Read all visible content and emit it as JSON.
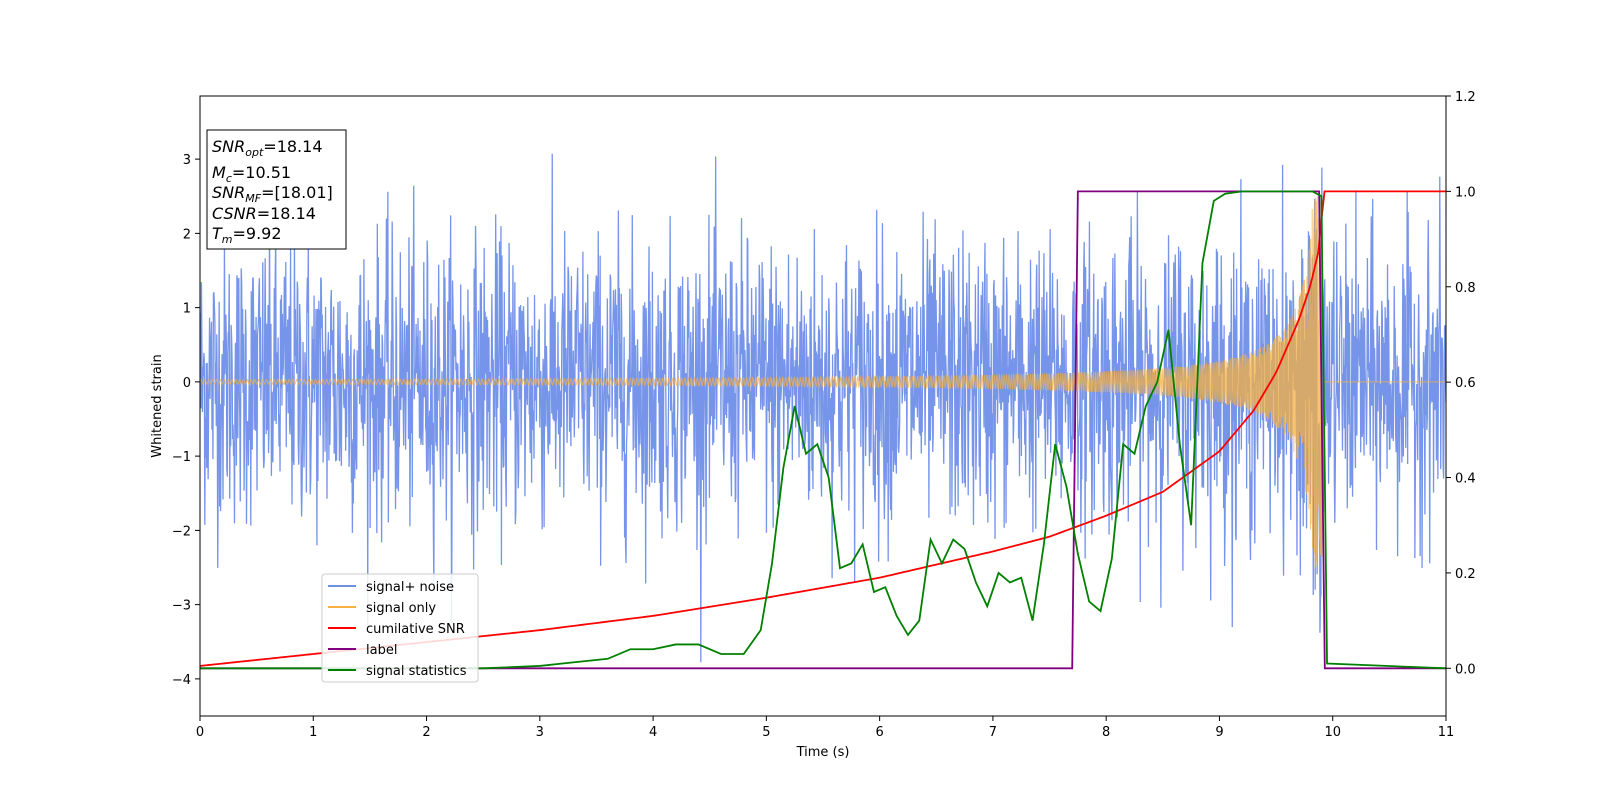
{
  "chart_data": {
    "type": "line",
    "xlabel": "Time (s)",
    "ylabel": "Whitened strain",
    "xlim": [
      0,
      11
    ],
    "ylim": [
      -4.5,
      3.85
    ],
    "y2lim": [
      -0.1,
      1.2
    ],
    "xticks": [
      0,
      1,
      2,
      3,
      4,
      5,
      6,
      7,
      8,
      9,
      10,
      11
    ],
    "yticks": [
      -4,
      -3,
      -2,
      -1,
      0,
      1,
      2,
      3
    ],
    "y2ticks": [
      0.0,
      0.2,
      0.4,
      0.6,
      0.8,
      1.0,
      1.2
    ],
    "xtick_labels": [
      "0",
      "1",
      "2",
      "3",
      "4",
      "5",
      "6",
      "7",
      "8",
      "9",
      "10",
      "11"
    ],
    "ytick_labels": [
      "−4",
      "−3",
      "−2",
      "−1",
      "0",
      "1",
      "2",
      "3"
    ],
    "y2tick_labels": [
      "0.0",
      "0.2",
      "0.4",
      "0.6",
      "0.8",
      "1.0",
      "1.2"
    ],
    "legend_position": "lower-left",
    "grid": false,
    "series": [
      {
        "name": "signal+ noise",
        "color": "#6f8ee8",
        "axis": "left",
        "kind": "noise",
        "noise_sigma": 0.95,
        "noise_range": [
          -4.15,
          3.5
        ]
      },
      {
        "name": "signal only",
        "color": "#f5b041",
        "axis": "left",
        "kind": "chirp",
        "merger_time": 9.92,
        "amplitude_start": 0.03,
        "amplitude_peak": 2.5
      },
      {
        "name": "cumilative SNR",
        "color": "#ff0000",
        "axis": "right",
        "x": [
          0,
          1,
          2,
          3,
          4,
          5,
          6,
          7,
          7.5,
          8,
          8.5,
          9,
          9.3,
          9.5,
          9.7,
          9.8,
          9.88,
          9.92,
          11
        ],
        "y": [
          0.005,
          0.03,
          0.055,
          0.08,
          0.11,
          0.148,
          0.19,
          0.245,
          0.276,
          0.32,
          0.37,
          0.455,
          0.54,
          0.62,
          0.73,
          0.8,
          0.88,
          1.0,
          1.0
        ]
      },
      {
        "name": "label",
        "color": "#800080",
        "axis": "right",
        "x": [
          0,
          7.7,
          7.75,
          9.88,
          9.93,
          11
        ],
        "y": [
          0,
          0,
          1,
          1,
          0,
          0
        ]
      },
      {
        "name": "signal statistics",
        "color": "#008000",
        "axis": "right",
        "x": [
          0,
          2.5,
          3.0,
          3.2,
          3.4,
          3.6,
          3.8,
          4.0,
          4.2,
          4.4,
          4.6,
          4.8,
          4.95,
          5.05,
          5.15,
          5.25,
          5.35,
          5.45,
          5.55,
          5.65,
          5.75,
          5.85,
          5.95,
          6.05,
          6.15,
          6.25,
          6.35,
          6.45,
          6.55,
          6.65,
          6.75,
          6.85,
          6.95,
          7.05,
          7.15,
          7.25,
          7.35,
          7.45,
          7.55,
          7.65,
          7.75,
          7.85,
          7.95,
          8.05,
          8.15,
          8.25,
          8.35,
          8.45,
          8.55,
          8.65,
          8.75,
          8.85,
          8.95,
          9.05,
          9.2,
          9.5,
          9.7,
          9.82,
          9.9,
          9.95,
          11
        ],
        "y": [
          0,
          0,
          0.005,
          0.01,
          0.015,
          0.02,
          0.04,
          0.04,
          0.05,
          0.05,
          0.03,
          0.03,
          0.08,
          0.22,
          0.42,
          0.55,
          0.45,
          0.47,
          0.4,
          0.21,
          0.22,
          0.26,
          0.16,
          0.17,
          0.11,
          0.07,
          0.1,
          0.27,
          0.22,
          0.27,
          0.25,
          0.18,
          0.13,
          0.2,
          0.18,
          0.19,
          0.1,
          0.26,
          0.47,
          0.38,
          0.24,
          0.14,
          0.12,
          0.23,
          0.47,
          0.45,
          0.55,
          0.6,
          0.71,
          0.47,
          0.3,
          0.85,
          0.98,
          0.995,
          1.0,
          1.0,
          1.0,
          1.0,
          0.99,
          0.01,
          0.0
        ]
      }
    ],
    "annotation": {
      "snr_opt": "=18.14",
      "mc": "=10.51",
      "snr_mf": "=[18.01]",
      "csnr": "=18.14",
      "tm": "=9.92"
    }
  }
}
